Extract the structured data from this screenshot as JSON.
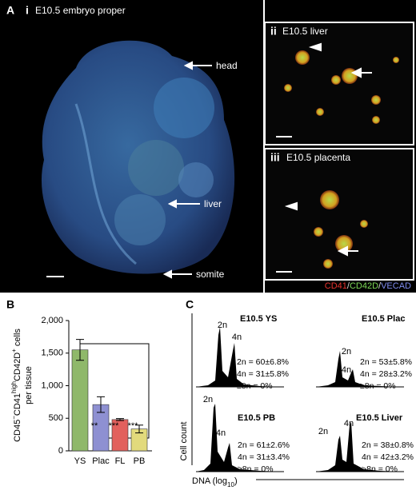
{
  "panel_a": {
    "letter": "A",
    "image_i": {
      "numeral": "i",
      "title": "E10.5 embryo proper",
      "labels": [
        "head",
        "liver",
        "somite"
      ]
    },
    "image_ii": {
      "numeral": "ii",
      "title": "E10.5 liver"
    },
    "image_iii": {
      "numeral": "iii",
      "title": "E10.5 placenta"
    },
    "stain_legend": [
      {
        "text": "CD41",
        "color": "#e8322e"
      },
      {
        "text": "/",
        "color": "#dddddd"
      },
      {
        "text": "CD42D",
        "color": "#7ed957"
      },
      {
        "text": "/",
        "color": "#dddddd"
      },
      {
        "text": "VECAD",
        "color": "#7f8cf0"
      }
    ]
  },
  "chart_data": {
    "type": "bar",
    "letter": "B",
    "ylabel_parts": [
      "CD45",
      "−",
      "CD41",
      "high",
      "CD42D",
      "+",
      " cells"
    ],
    "ylabel_line2": "per tissue",
    "categories": [
      "YS",
      "Plac",
      "FL",
      "PB"
    ],
    "values": [
      1550,
      710,
      480,
      335
    ],
    "errors": [
      160,
      120,
      15,
      60
    ],
    "colors": [
      "#8fb86a",
      "#8e90d2",
      "#e2615d",
      "#e2da7c"
    ],
    "ylim": [
      0,
      2000
    ],
    "yticks": [
      0,
      500,
      {
        "value": 1000,
        "label": "1,000"
      },
      {
        "value": 1500,
        "label": "1,500"
      },
      {
        "value": 2000,
        "label": "2,000"
      }
    ],
    "significance": [
      "**",
      "***",
      "***"
    ]
  },
  "panel_c": {
    "letter": "C",
    "ylabel": "Cell count",
    "xlabel_parts": [
      "DNA (log",
      "10",
      ")"
    ],
    "histograms": [
      {
        "title": "E10.5 YS",
        "peaks": [
          "2n",
          "4n"
        ],
        "stats": [
          "2n = 60±6.8%",
          "4n = 31±5.8%",
          "≥8n = 0%"
        ]
      },
      {
        "title": "E10.5 Plac",
        "peaks": [
          "2n",
          "4n"
        ],
        "stats": [
          "2n = 53±5.8%",
          "4n = 28±3.2%",
          "≥8n = 0%"
        ]
      },
      {
        "title": "E10.5 PB",
        "peaks": [
          "2n",
          "4n"
        ],
        "stats": [
          "2n = 61±2.6%",
          "4n = 31±3.4%",
          "≥8n = 0%"
        ]
      },
      {
        "title": "E10.5 Liver",
        "peaks": [
          "2n",
          "4n"
        ],
        "stats": [
          "2n = 38±0.8%",
          "4n = 42±3.2%",
          ">8n = 0%"
        ]
      }
    ]
  }
}
